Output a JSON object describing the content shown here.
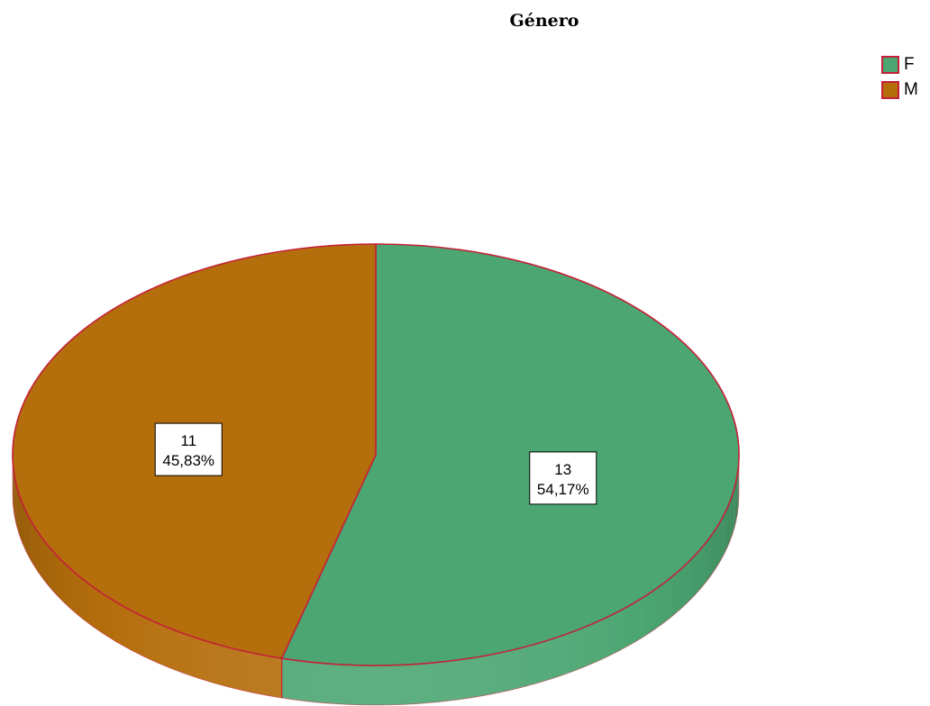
{
  "chart_data": {
    "type": "pie",
    "title": "Género",
    "categories": [
      "F",
      "M"
    ],
    "values": [
      13,
      11
    ],
    "percent_labels": [
      "54,17%",
      "45,83%"
    ],
    "colors": [
      "#4ba671",
      "#b56e0c"
    ],
    "outline_color": "#c42038",
    "legend_position": "top-right"
  }
}
